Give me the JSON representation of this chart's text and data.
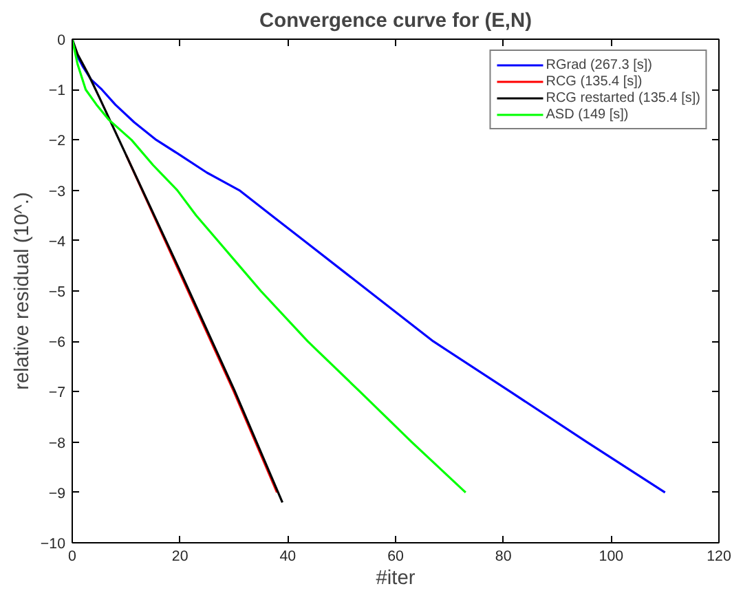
{
  "chart_data": {
    "type": "line",
    "title": "Convergence curve for (E,N)",
    "xlabel": "#iter",
    "ylabel": "relative residual (10^.)",
    "xlim": [
      0,
      120
    ],
    "xticks": [
      0,
      20,
      40,
      60,
      80,
      100,
      120
    ],
    "ylim": [
      -10,
      0
    ],
    "yticks": [
      -10,
      -9,
      -8,
      -7,
      -6,
      -5,
      -4,
      -3,
      -2,
      -1,
      0
    ],
    "grid": false,
    "legend": "top right",
    "line_style": "solid",
    "series": [
      {
        "name": "RGrad (267.3 [s])",
        "color": "#0000ff",
        "x": [
          0,
          1,
          2,
          3.5,
          5.5,
          8,
          11.5,
          15.6,
          20,
          25,
          31,
          37,
          43,
          55,
          67,
          81.3,
          95.5,
          110
        ],
        "values": [
          0,
          -0.35,
          -0.55,
          -0.8,
          -1.0,
          -1.3,
          -1.65,
          -2.0,
          -2.3,
          -2.65,
          -3.0,
          -3.5,
          -4.0,
          -5.0,
          -6.0,
          -7.0,
          -8.0,
          -9.0
        ]
      },
      {
        "name": "RCG (135.4 [s])",
        "color": "#ff0000",
        "x": [
          10,
          20,
          30,
          38
        ],
        "values": [
          -2.3,
          -4.65,
          -7.0,
          -9.0
        ]
      },
      {
        "name": "RCG restarted (135.4 [s])",
        "color": "#000000",
        "x": [
          0,
          1,
          2,
          3,
          5,
          10,
          20,
          30,
          39
        ],
        "values": [
          0,
          -0.3,
          -0.5,
          -0.7,
          -1.15,
          -2.3,
          -4.6,
          -6.95,
          -9.2
        ]
      },
      {
        "name": "ASD (149 [s])",
        "color": "#00ff00",
        "x": [
          0,
          1,
          2.5,
          4.5,
          6.8,
          11,
          15,
          19.5,
          23,
          27,
          31,
          35,
          43.7,
          53.4,
          63,
          73
        ],
        "values": [
          0,
          -0.5,
          -1.0,
          -1.3,
          -1.6,
          -2.0,
          -2.5,
          -3.0,
          -3.5,
          -4.0,
          -4.5,
          -5.0,
          -6.0,
          -7.0,
          -8.0,
          -9.0
        ]
      }
    ]
  }
}
